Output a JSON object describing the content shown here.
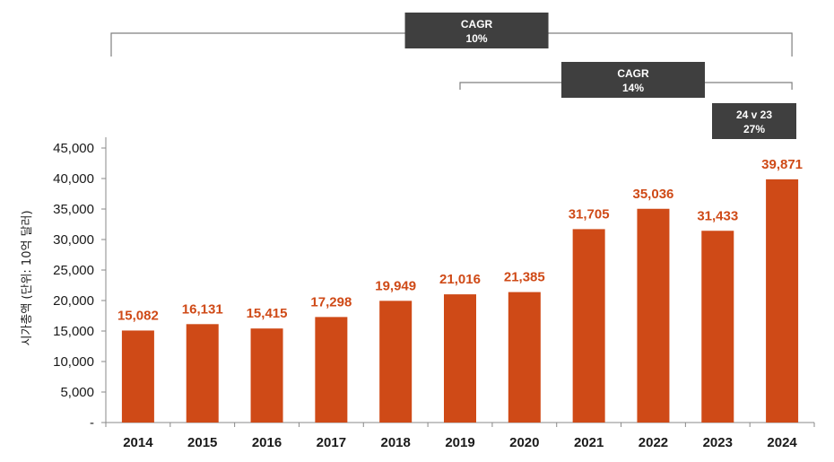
{
  "chart_data": {
    "type": "bar",
    "categories": [
      "2014",
      "2015",
      "2016",
      "2017",
      "2018",
      "2019",
      "2020",
      "2021",
      "2022",
      "2023",
      "2024"
    ],
    "values": [
      15082,
      16131,
      15415,
      17298,
      19949,
      21016,
      21385,
      31705,
      35036,
      31433,
      39871
    ],
    "value_labels": [
      "15,082",
      "16,131",
      "15,415",
      "17,298",
      "19,949",
      "21,016",
      "21,385",
      "31,705",
      "35,036",
      "31,433",
      "39,871"
    ],
    "ylabel": "시가총액 (단위: 10억 달러)",
    "ylim": [
      0,
      45000
    ],
    "yticks": [
      0,
      5000,
      10000,
      15000,
      20000,
      25000,
      30000,
      35000,
      40000,
      45000
    ],
    "ytick_labels": [
      "-",
      "5,000",
      "10,000",
      "15,000",
      "20,000",
      "25,000",
      "30,000",
      "35,000",
      "40,000",
      "45,000"
    ],
    "bar_color": "#cf4a17",
    "label_color": "#cf4a17",
    "annotations": [
      {
        "from": "2014",
        "to": "2024",
        "line1": "CAGR",
        "line2": "10%"
      },
      {
        "from": "2019",
        "to": "2024",
        "line1": "CAGR",
        "line2": "14%"
      },
      {
        "from": "2023",
        "to": "2024",
        "line1": "24 v 23",
        "line2": "27%"
      }
    ],
    "annotation_box_color": "#3f3f3f",
    "annotation_line_color": "#7f7f7f"
  }
}
